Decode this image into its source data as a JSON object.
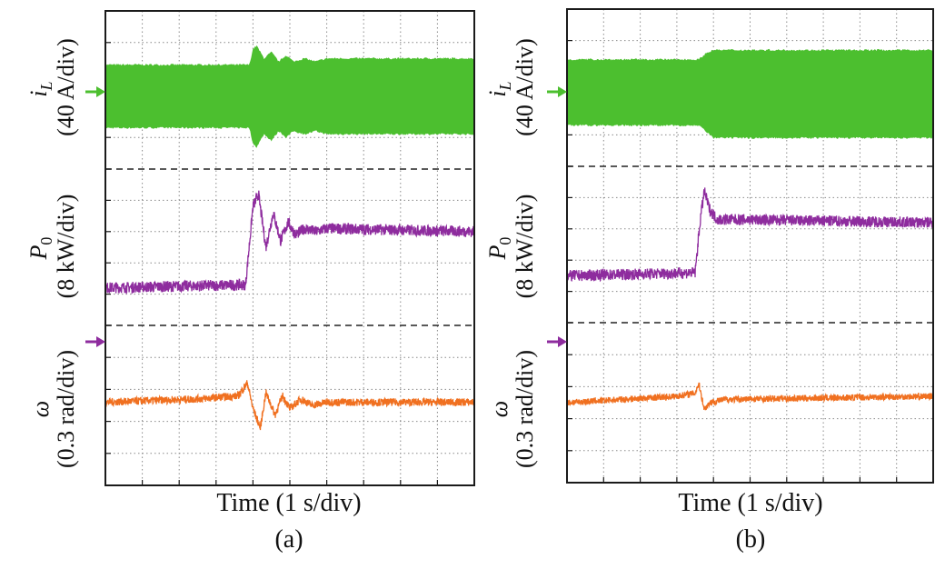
{
  "colors": {
    "green": "#4cbf2f",
    "purple": "#8e2c9e",
    "orange": "#f07020",
    "grid": "#8a8a8a",
    "frame": "#1a1a1a"
  },
  "chart_data": [
    {
      "panel_label": "(a)",
      "type": "line",
      "xlabel": "Time (1 s/div)",
      "grid": true,
      "x_divisions": 10,
      "channels": [
        {
          "symbol": "i",
          "subscript": "L",
          "scale": "(40 A/div)",
          "color": "#4cbf2f",
          "kind": "band",
          "x": [
            0,
            3.9,
            4.0,
            4.1,
            4.3,
            4.5,
            4.7,
            4.9,
            5.1,
            5.4,
            5.7,
            6.0,
            10
          ],
          "upper": [
            3.3,
            3.3,
            3.8,
            3.9,
            3.5,
            3.7,
            3.4,
            3.6,
            3.4,
            3.5,
            3.4,
            3.5,
            3.5
          ],
          "lower": [
            1.3,
            1.3,
            0.8,
            0.7,
            1.1,
            0.9,
            1.2,
            1.0,
            1.2,
            1.1,
            1.2,
            1.1,
            1.1
          ]
        },
        {
          "symbol": "P",
          "subscript": "0",
          "scale": "(8 kW/div)",
          "color": "#8e2c9e",
          "kind": "noisy",
          "x": [
            0,
            3.8,
            4.0,
            4.15,
            4.35,
            4.55,
            4.75,
            4.95,
            5.15,
            5.4,
            5.7,
            6.0,
            10
          ],
          "y": [
            1.2,
            1.3,
            3.8,
            4.2,
            2.5,
            3.6,
            2.7,
            3.3,
            2.9,
            3.1,
            3.0,
            3.1,
            3.0
          ],
          "noise": 0.18
        },
        {
          "symbol": "ω",
          "subscript": "",
          "scale": "(0.3 rad/div)",
          "color": "#f07020",
          "kind": "noisy",
          "x": [
            0,
            2.5,
            3.6,
            3.85,
            4.0,
            4.2,
            4.35,
            4.6,
            4.8,
            5.0,
            5.3,
            5.6,
            6.0,
            10
          ],
          "y": [
            2.6,
            2.7,
            2.8,
            3.2,
            2.4,
            1.8,
            2.9,
            2.2,
            2.8,
            2.4,
            2.7,
            2.5,
            2.6,
            2.6
          ],
          "noise": 0.12
        }
      ]
    },
    {
      "panel_label": "(b)",
      "type": "line",
      "xlabel": "Time (1 s/div)",
      "grid": true,
      "x_divisions": 10,
      "channels": [
        {
          "symbol": "i",
          "subscript": "L",
          "scale": "(40 A/div)",
          "color": "#4cbf2f",
          "kind": "band",
          "x": [
            0,
            3.6,
            3.8,
            4.0,
            10
          ],
          "upper": [
            3.4,
            3.4,
            3.6,
            3.7,
            3.7
          ],
          "lower": [
            1.3,
            1.3,
            1.1,
            0.9,
            0.9
          ]
        },
        {
          "symbol": "P",
          "subscript": "0",
          "scale": "(8 kW/div)",
          "color": "#8e2c9e",
          "kind": "noisy",
          "x": [
            0,
            3.5,
            3.65,
            3.75,
            3.9,
            4.1,
            4.5,
            10
          ],
          "y": [
            1.5,
            1.6,
            3.4,
            4.2,
            3.6,
            3.3,
            3.3,
            3.2
          ],
          "noise": 0.18
        },
        {
          "symbol": "ω",
          "subscript": "",
          "scale": "(0.3 rad/div)",
          "color": "#f07020",
          "kind": "noisy",
          "x": [
            0,
            3.0,
            3.5,
            3.6,
            3.75,
            3.9,
            4.3,
            10
          ],
          "y": [
            2.5,
            2.7,
            2.8,
            3.1,
            2.3,
            2.5,
            2.6,
            2.7
          ],
          "noise": 0.1
        }
      ]
    }
  ]
}
